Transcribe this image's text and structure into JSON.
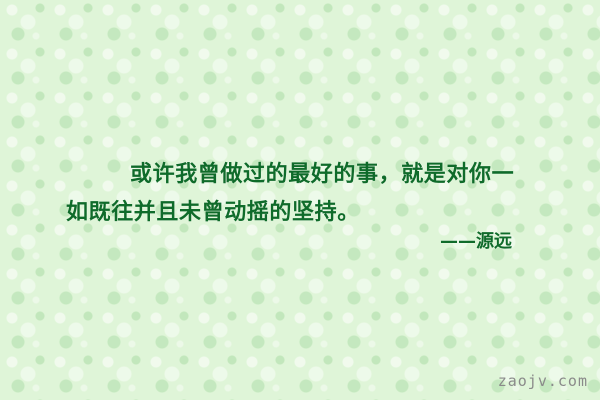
{
  "quote": {
    "line1": "或许我曾做过的最好的事，就是对你一",
    "line2": "如既往并且未曾动摇的坚持。"
  },
  "attribution": "——源远",
  "watermark": "zaojv.com",
  "colors": {
    "text": "#0f6b2a",
    "background": "#dff5d8",
    "watermark": "#8a8a8a"
  }
}
